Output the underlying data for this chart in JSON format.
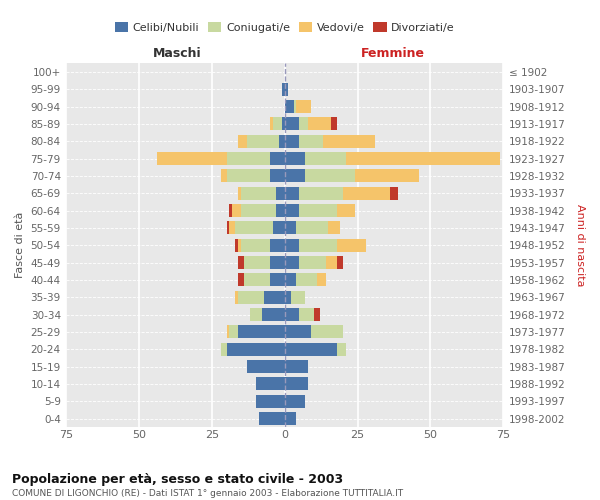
{
  "age_groups": [
    "0-4",
    "5-9",
    "10-14",
    "15-19",
    "20-24",
    "25-29",
    "30-34",
    "35-39",
    "40-44",
    "45-49",
    "50-54",
    "55-59",
    "60-64",
    "65-69",
    "70-74",
    "75-79",
    "80-84",
    "85-89",
    "90-94",
    "95-99",
    "100+"
  ],
  "birth_years": [
    "1998-2002",
    "1993-1997",
    "1988-1992",
    "1983-1987",
    "1978-1982",
    "1973-1977",
    "1968-1972",
    "1963-1967",
    "1958-1962",
    "1953-1957",
    "1948-1952",
    "1943-1947",
    "1938-1942",
    "1933-1937",
    "1928-1932",
    "1923-1927",
    "1918-1922",
    "1913-1917",
    "1908-1912",
    "1903-1907",
    "≤ 1902"
  ],
  "maschi": {
    "celibe": [
      9,
      10,
      10,
      13,
      20,
      16,
      8,
      7,
      5,
      5,
      5,
      4,
      3,
      3,
      5,
      5,
      2,
      1,
      0,
      1,
      0
    ],
    "coniugato": [
      0,
      0,
      0,
      0,
      2,
      3,
      4,
      9,
      9,
      9,
      10,
      13,
      12,
      12,
      15,
      15,
      11,
      3,
      0,
      0,
      0
    ],
    "vedovo": [
      0,
      0,
      0,
      0,
      0,
      1,
      0,
      1,
      0,
      0,
      1,
      2,
      3,
      1,
      2,
      24,
      3,
      1,
      0,
      0,
      0
    ],
    "divorziato": [
      0,
      0,
      0,
      0,
      0,
      0,
      0,
      0,
      2,
      2,
      1,
      1,
      1,
      0,
      0,
      0,
      0,
      0,
      0,
      0,
      0
    ]
  },
  "femmine": {
    "nubile": [
      4,
      7,
      8,
      8,
      18,
      9,
      5,
      2,
      4,
      5,
      5,
      4,
      5,
      5,
      7,
      7,
      5,
      5,
      3,
      1,
      0
    ],
    "coniugata": [
      0,
      0,
      0,
      0,
      3,
      11,
      5,
      5,
      7,
      9,
      13,
      11,
      13,
      15,
      17,
      14,
      8,
      3,
      1,
      0,
      0
    ],
    "vedova": [
      0,
      0,
      0,
      0,
      0,
      0,
      0,
      0,
      3,
      4,
      10,
      4,
      6,
      16,
      22,
      53,
      18,
      8,
      5,
      0,
      0
    ],
    "divorziata": [
      0,
      0,
      0,
      0,
      0,
      0,
      2,
      0,
      0,
      2,
      0,
      0,
      0,
      3,
      0,
      0,
      0,
      2,
      0,
      0,
      0
    ]
  },
  "colors": {
    "celibe": "#4a74a8",
    "coniugato": "#c8d9a0",
    "vedovo": "#f5c46a",
    "divorziato": "#c0392b"
  },
  "xlim": 75,
  "title": "Popolazione per età, sesso e stato civile - 2003",
  "subtitle": "COMUNE DI LIGONCHIO (RE) - Dati ISTAT 1° gennaio 2003 - Elaborazione TUTTITALIA.IT",
  "ylabel_left": "Fasce di età",
  "ylabel_right": "Anni di nascita",
  "xlabel_left": "Maschi",
  "xlabel_right": "Femmine"
}
